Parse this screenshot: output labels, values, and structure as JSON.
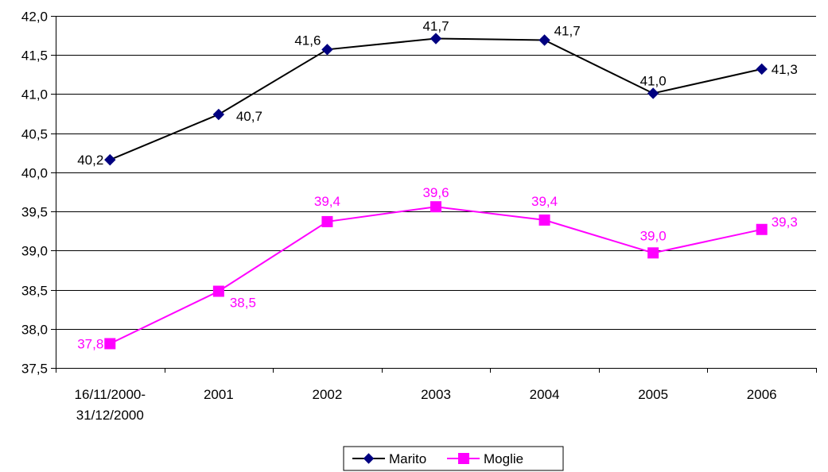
{
  "chart_data": {
    "type": "line",
    "categories": [
      "16/11/2000-31/12/2000",
      "2001",
      "2002",
      "2003",
      "2004",
      "2005",
      "2006"
    ],
    "category_lines": [
      [
        "16/11/2000-",
        "31/12/2000"
      ],
      [
        "2001"
      ],
      [
        "2002"
      ],
      [
        "2003"
      ],
      [
        "2004"
      ],
      [
        "2005"
      ],
      [
        "2006"
      ]
    ],
    "ylim": [
      37.5,
      42.0
    ],
    "yticks": [
      37.5,
      38.0,
      38.5,
      39.0,
      39.5,
      40.0,
      40.5,
      41.0,
      41.5,
      42.0
    ],
    "ytick_labels": [
      "37,5",
      "38,0",
      "38,5",
      "39,0",
      "39,5",
      "40,0",
      "40,5",
      "41,0",
      "41,5",
      "42,0"
    ],
    "grid": true,
    "legend_position": "bottom",
    "series": [
      {
        "name": "Marito",
        "color": "#000080",
        "line_color": "#000000",
        "marker": "diamond",
        "values": [
          40.16,
          40.74,
          41.57,
          41.71,
          41.69,
          41.01,
          41.32
        ],
        "labels": [
          "40,2",
          "40,7",
          "41,6",
          "41,7",
          "41,7",
          "41,0",
          "41,3"
        ]
      },
      {
        "name": "Moglie",
        "color": "#FF00FF",
        "line_color": "#FF00FF",
        "marker": "square",
        "values": [
          37.81,
          38.48,
          39.37,
          39.56,
          39.39,
          38.97,
          39.27
        ],
        "labels": [
          "37,8",
          "38,5",
          "39,4",
          "39,6",
          "39,4",
          "39,0",
          "39,3"
        ]
      }
    ]
  }
}
